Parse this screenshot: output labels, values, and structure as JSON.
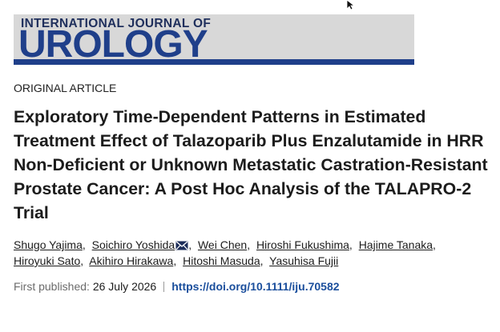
{
  "journal": {
    "line1": "INTERNATIONAL JOURNAL OF",
    "line2": "UROLOGY"
  },
  "article_type": "ORIGINAL ARTICLE",
  "title": "Exploratory Time-Dependent Patterns in Estimated Treatment Effect of Talazoparib Plus Enzalutamide in HRR Non-Deficient or Unknown Metastatic Castration-Resistant Prostate Cancer: A Post Hoc Analysis of the TALAPRO-2 Trial",
  "authors": [
    "Shugo Yajima",
    "Soichiro Yoshida",
    "Wei Chen",
    "Hiroshi Fukushima",
    "Hajime Tanaka",
    "Hiroyuki Sato",
    "Akihiro Hirakawa",
    "Hitoshi Masuda",
    "Yasuhisa Fujii"
  ],
  "published": {
    "label": "First published:",
    "date": "26 July 2026",
    "doi": "https://doi.org/10.1111/iju.70582"
  }
}
